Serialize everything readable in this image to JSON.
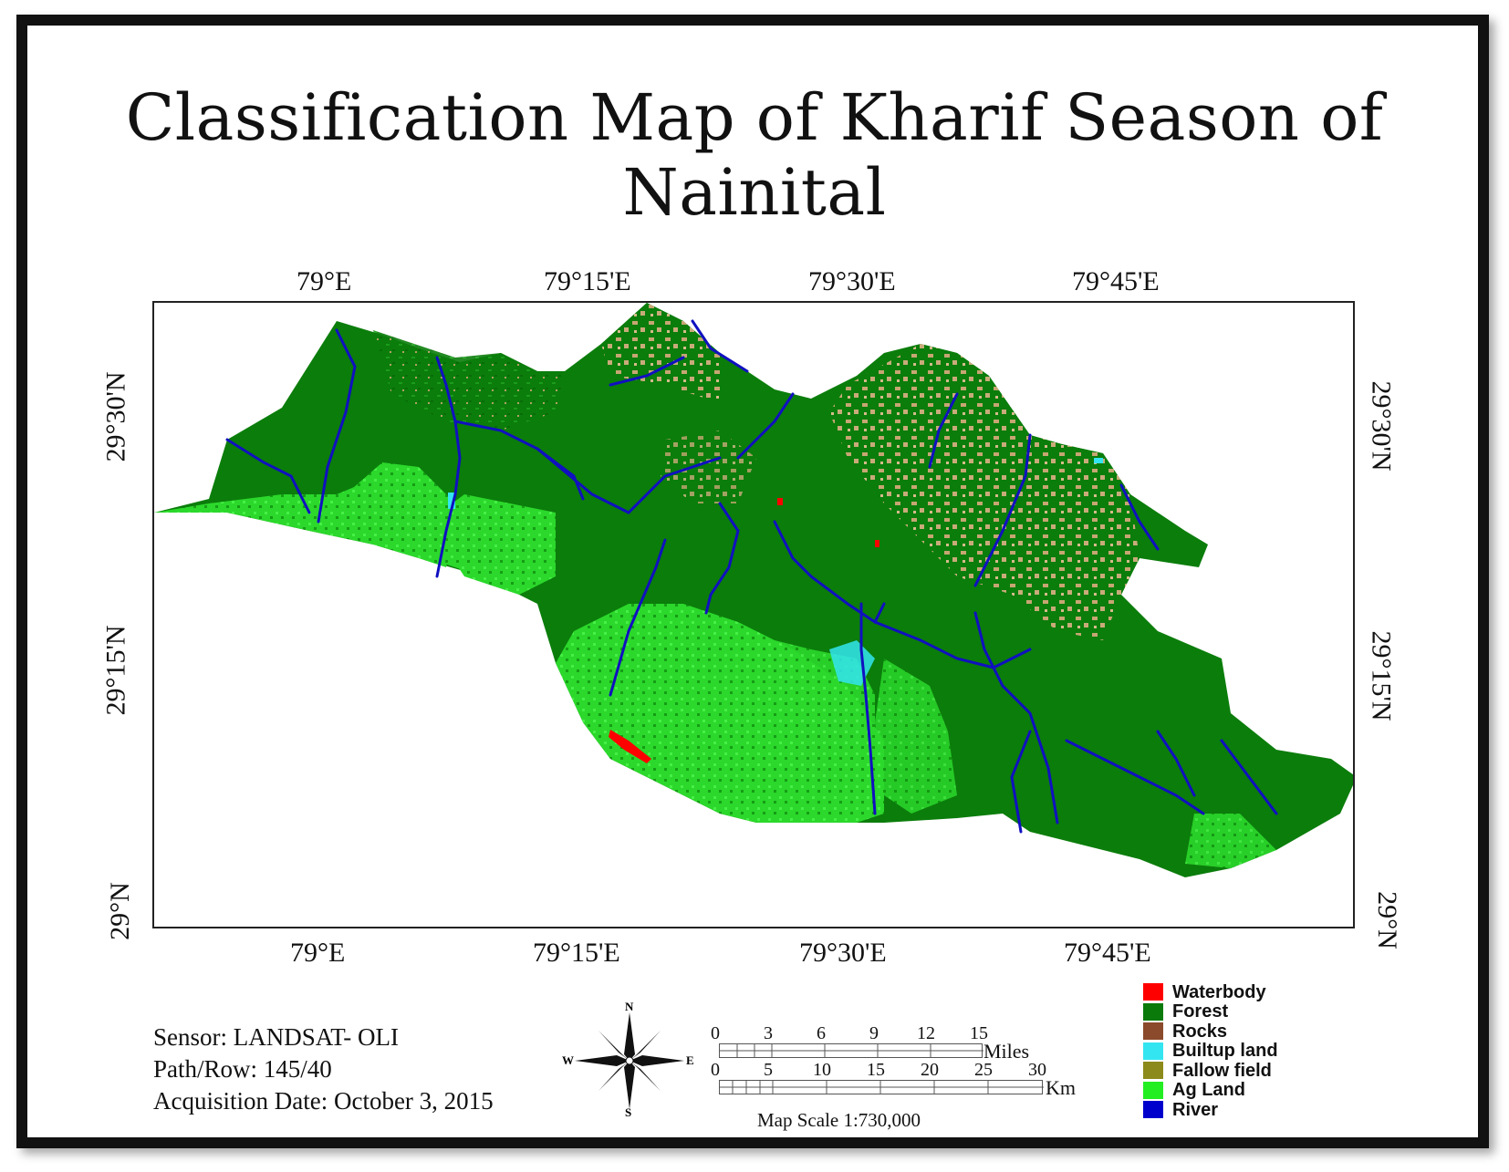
{
  "title": "Classification Map of Kharif Season of Nainital",
  "axes": {
    "top": [
      "79°E",
      "79°15'E",
      "79°30'E",
      "79°45'E"
    ],
    "bottom": [
      "79°E",
      "79°15'E",
      "79°30'E",
      "79°45'E"
    ],
    "left": [
      "29°30'N",
      "29°15'N",
      "29°N"
    ],
    "right": [
      "29°30'N",
      "29°15'N",
      "29°N"
    ]
  },
  "info": {
    "sensor": "Sensor: LANDSAT- OLI",
    "path_row": "Path/Row: 145/40",
    "acquisition": "Acquisition Date: October 3, 2015"
  },
  "north_arrow": {
    "n": "N",
    "s": "S",
    "e": "E",
    "w": "W",
    "icon": "compass-rose-icon"
  },
  "scale": {
    "miles_ticks": [
      "0",
      "3",
      "6",
      "9",
      "12",
      "15"
    ],
    "miles_unit": "Miles",
    "km_ticks": [
      "0",
      "5",
      "10",
      "15",
      "20",
      "25",
      "30"
    ],
    "km_unit": "Km",
    "map_scale": "Map Scale 1:730,000"
  },
  "legend": [
    {
      "label": "Waterbody",
      "color": "#ff0000"
    },
    {
      "label": "Forest",
      "color": "#0a7a0a"
    },
    {
      "label": "Rocks",
      "color": "#8b4a2b"
    },
    {
      "label": "Builtup land",
      "color": "#33e5f0"
    },
    {
      "label": "Fallow field",
      "color": "#8c8a1a"
    },
    {
      "label": "Ag Land",
      "color": "#22ee22"
    },
    {
      "label": "River",
      "color": "#0000cc"
    }
  ]
}
